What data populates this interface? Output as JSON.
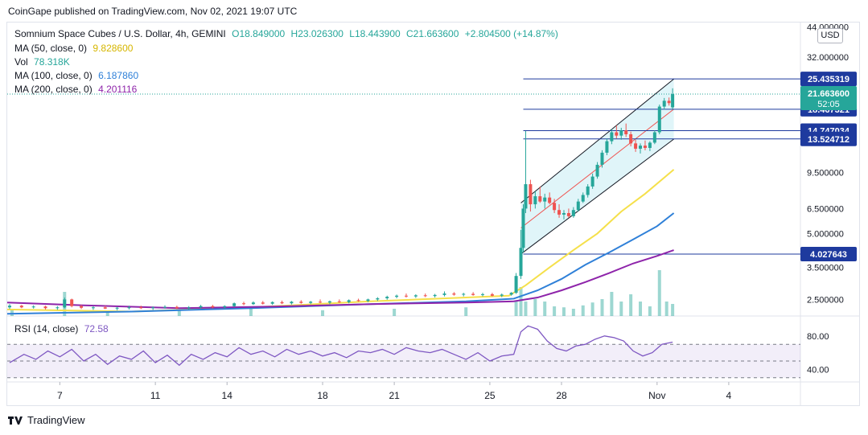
{
  "attribution": "CoinGape published on TradingView.com, Nov 02, 2021 19:07 UTC",
  "footer_brand": "TradingView",
  "currency_button": "USD",
  "legend": {
    "symbol": "Somnium Space Cubes / U.S. Dollar, 4h, GEMINI",
    "open": "O18.849000",
    "high": "H23.026300",
    "low": "L18.443900",
    "close": "C21.663600",
    "change": "+2.804500 (+14.87%)",
    "ma50_label": "MA (50, close, 0)",
    "ma50_value": "9.828600",
    "vol_label": "Vol",
    "vol_value": "78.318K",
    "ma100_label": "MA (100, close, 0)",
    "ma100_value": "6.187860",
    "ma200_label": "MA (200, close, 0)",
    "ma200_value": "4.201116",
    "rsi_label": "RSI (14, close)",
    "rsi_value": "72.58"
  },
  "colors": {
    "up": "#26a69a",
    "down": "#ef5350",
    "ma50": "#f5e04b",
    "ma100": "#2f80d8",
    "ma200": "#8e24aa",
    "rsi": "#7e57c2",
    "hline": "#1e3a9e",
    "channel": "#d8f3f7",
    "price_badge": "#26a69a"
  },
  "chart_data": [
    {
      "type": "line",
      "subtype": "candlestick",
      "title": "Somnium Space Cubes / U.S. Dollar, 4h, GEMINI",
      "x_ticks": [
        "7",
        "11",
        "14",
        "18",
        "21",
        "25",
        "28",
        "Nov",
        "4"
      ],
      "x_tick_positions": [
        7,
        11,
        14,
        18,
        21,
        25,
        28,
        32,
        35
      ],
      "y_scale": "log",
      "y_ticks": [
        2.5,
        3.5,
        5.0,
        6.5,
        9.5,
        32.0,
        44.0
      ],
      "y_tick_labels": [
        "2.500000",
        "3.500000",
        "5.000000",
        "6.500000",
        "9.500000",
        "32.000000",
        "44.000000"
      ],
      "ylim": [
        2.1,
        46
      ],
      "xlim": [
        4.8,
        38.0
      ],
      "x_unit": "day",
      "price_levels": [
        {
          "value": 25.435319,
          "label": "25.435319"
        },
        {
          "value": 18.467321,
          "label": "18.467321"
        },
        {
          "value": 14.747034,
          "label": "14.747034"
        },
        {
          "value": 13.524712,
          "label": "13.524712"
        },
        {
          "value": 4.027643,
          "label": "4.027643"
        }
      ],
      "last_price": {
        "value": 21.6636,
        "label": "21.663600",
        "countdown": "52:05"
      },
      "channel": {
        "upper": [
          [
            26.3,
            6.9
          ],
          [
            32.7,
            25.4
          ]
        ],
        "lower": [
          [
            26.3,
            4.03
          ],
          [
            32.7,
            13.5
          ]
        ],
        "mid": [
          [
            26.3,
            5.3
          ],
          [
            32.7,
            18.5
          ]
        ]
      },
      "moving_averages": [
        {
          "name": "MA (50, close, 0)",
          "points": [
            [
              4.8,
              2.25
            ],
            [
              10,
              2.2
            ],
            [
              15,
              2.3
            ],
            [
              20,
              2.45
            ],
            [
              24,
              2.55
            ],
            [
              25.8,
              2.6
            ],
            [
              26.5,
              2.9
            ],
            [
              27.5,
              3.5
            ],
            [
              28.5,
              4.2
            ],
            [
              29.5,
              5.0
            ],
            [
              30.5,
              6.3
            ],
            [
              31.5,
              7.6
            ],
            [
              32.7,
              9.8
            ]
          ]
        },
        {
          "name": "MA (100, close, 0)",
          "points": [
            [
              4.8,
              2.15
            ],
            [
              10,
              2.2
            ],
            [
              15,
              2.28
            ],
            [
              20,
              2.38
            ],
            [
              24,
              2.45
            ],
            [
              26,
              2.52
            ],
            [
              27,
              2.75
            ],
            [
              28,
              3.1
            ],
            [
              29,
              3.6
            ],
            [
              30,
              4.1
            ],
            [
              31,
              4.7
            ],
            [
              32,
              5.4
            ],
            [
              32.7,
              6.2
            ]
          ]
        },
        {
          "name": "MA (200, close, 0)",
          "points": [
            [
              4.8,
              2.42
            ],
            [
              8,
              2.35
            ],
            [
              12,
              2.28
            ],
            [
              16,
              2.32
            ],
            [
              20,
              2.38
            ],
            [
              24,
              2.42
            ],
            [
              26,
              2.45
            ],
            [
              27,
              2.55
            ],
            [
              28,
              2.75
            ],
            [
              29,
              3.0
            ],
            [
              30,
              3.3
            ],
            [
              31,
              3.65
            ],
            [
              32,
              3.95
            ],
            [
              32.7,
              4.2
            ]
          ]
        }
      ],
      "candles": [
        [
          4.9,
          2.3,
          2.38,
          2.26,
          2.34
        ],
        [
          5.4,
          2.34,
          2.36,
          2.28,
          2.3
        ],
        [
          5.9,
          2.3,
          2.35,
          2.27,
          2.32
        ],
        [
          6.4,
          2.32,
          2.34,
          2.25,
          2.28
        ],
        [
          6.9,
          2.28,
          2.33,
          2.24,
          2.3
        ],
        [
          7.2,
          2.3,
          2.55,
          2.28,
          2.5
        ],
        [
          7.5,
          2.5,
          2.52,
          2.3,
          2.33
        ],
        [
          7.9,
          2.33,
          2.36,
          2.26,
          2.29
        ],
        [
          8.4,
          2.29,
          2.33,
          2.24,
          2.3
        ],
        [
          8.9,
          2.3,
          2.34,
          2.26,
          2.27
        ],
        [
          9.4,
          2.27,
          2.31,
          2.23,
          2.29
        ],
        [
          9.9,
          2.29,
          2.34,
          2.25,
          2.3
        ],
        [
          10.4,
          2.3,
          2.34,
          2.26,
          2.28
        ],
        [
          10.9,
          2.28,
          2.32,
          2.24,
          2.3
        ],
        [
          11.4,
          2.3,
          2.35,
          2.27,
          2.31
        ],
        [
          11.9,
          2.31,
          2.34,
          2.26,
          2.28
        ],
        [
          12.4,
          2.28,
          2.33,
          2.25,
          2.3
        ],
        [
          12.9,
          2.3,
          2.36,
          2.27,
          2.33
        ],
        [
          13.4,
          2.33,
          2.36,
          2.28,
          2.3
        ],
        [
          13.9,
          2.3,
          2.35,
          2.27,
          2.33
        ],
        [
          14.3,
          2.33,
          2.42,
          2.31,
          2.4
        ],
        [
          14.7,
          2.4,
          2.44,
          2.35,
          2.38
        ],
        [
          15.1,
          2.38,
          2.45,
          2.36,
          2.42
        ],
        [
          15.5,
          2.42,
          2.46,
          2.37,
          2.39
        ],
        [
          15.9,
          2.39,
          2.45,
          2.36,
          2.43
        ],
        [
          16.3,
          2.43,
          2.47,
          2.38,
          2.4
        ],
        [
          16.7,
          2.4,
          2.46,
          2.37,
          2.44
        ],
        [
          17.1,
          2.44,
          2.48,
          2.39,
          2.41
        ],
        [
          17.5,
          2.41,
          2.46,
          2.38,
          2.44
        ],
        [
          17.9,
          2.44,
          2.5,
          2.4,
          2.42
        ],
        [
          18.3,
          2.42,
          2.47,
          2.38,
          2.45
        ],
        [
          18.7,
          2.45,
          2.5,
          2.41,
          2.43
        ],
        [
          19.1,
          2.43,
          2.5,
          2.4,
          2.48
        ],
        [
          19.5,
          2.48,
          2.52,
          2.44,
          2.46
        ],
        [
          19.9,
          2.46,
          2.52,
          2.43,
          2.5
        ],
        [
          20.3,
          2.5,
          2.56,
          2.46,
          2.53
        ],
        [
          20.7,
          2.53,
          2.6,
          2.49,
          2.57
        ],
        [
          21.1,
          2.57,
          2.63,
          2.53,
          2.6
        ],
        [
          21.5,
          2.6,
          2.66,
          2.55,
          2.58
        ],
        [
          21.9,
          2.58,
          2.64,
          2.54,
          2.61
        ],
        [
          22.3,
          2.61,
          2.66,
          2.56,
          2.59
        ],
        [
          22.7,
          2.59,
          2.65,
          2.55,
          2.62
        ],
        [
          23.1,
          2.62,
          2.72,
          2.58,
          2.66
        ],
        [
          23.5,
          2.66,
          2.7,
          2.6,
          2.63
        ],
        [
          23.9,
          2.63,
          2.68,
          2.58,
          2.65
        ],
        [
          24.3,
          2.65,
          2.7,
          2.6,
          2.62
        ],
        [
          24.7,
          2.62,
          2.68,
          2.58,
          2.64
        ],
        [
          25.1,
          2.64,
          2.68,
          2.58,
          2.6
        ],
        [
          25.5,
          2.6,
          2.66,
          2.56,
          2.63
        ],
        [
          25.9,
          2.63,
          2.7,
          2.6,
          2.68
        ],
        [
          26.1,
          2.68,
          3.3,
          2.65,
          3.2
        ],
        [
          26.3,
          3.2,
          5.2,
          3.1,
          4.3
        ],
        [
          26.4,
          4.3,
          6.8,
          4.1,
          6.5
        ],
        [
          26.5,
          6.5,
          14.7,
          6.2,
          8.4
        ],
        [
          26.7,
          8.4,
          8.8,
          6.3,
          6.8
        ],
        [
          26.9,
          6.8,
          7.8,
          6.5,
          7.4
        ],
        [
          27.1,
          7.4,
          8.2,
          6.9,
          7.0
        ],
        [
          27.3,
          7.0,
          7.6,
          6.5,
          7.3
        ],
        [
          27.5,
          7.3,
          7.7,
          6.8,
          6.9
        ],
        [
          27.7,
          6.9,
          7.2,
          6.2,
          6.4
        ],
        [
          27.9,
          6.4,
          6.8,
          5.9,
          6.1
        ],
        [
          28.1,
          6.1,
          6.4,
          5.8,
          6.2
        ],
        [
          28.3,
          6.2,
          6.5,
          5.9,
          6.0
        ],
        [
          28.5,
          6.0,
          6.6,
          5.9,
          6.4
        ],
        [
          28.7,
          6.4,
          7.2,
          6.3,
          7.0
        ],
        [
          28.9,
          7.0,
          7.7,
          6.9,
          7.5
        ],
        [
          29.1,
          7.5,
          8.4,
          7.3,
          8.2
        ],
        [
          29.3,
          8.2,
          9.4,
          8.0,
          9.1
        ],
        [
          29.5,
          9.1,
          10.6,
          8.9,
          10.3
        ],
        [
          29.7,
          10.3,
          12.0,
          10.0,
          11.7
        ],
        [
          29.9,
          11.7,
          13.6,
          11.4,
          13.2
        ],
        [
          30.1,
          13.2,
          15.0,
          12.8,
          14.5
        ],
        [
          30.3,
          14.5,
          15.6,
          13.6,
          14.0
        ],
        [
          30.5,
          14.0,
          15.2,
          13.4,
          14.8
        ],
        [
          30.7,
          14.8,
          15.9,
          13.8,
          14.2
        ],
        [
          30.9,
          14.2,
          14.6,
          12.5,
          12.9
        ],
        [
          31.1,
          12.9,
          13.4,
          11.8,
          12.2
        ],
        [
          31.3,
          12.2,
          12.9,
          11.6,
          12.6
        ],
        [
          31.5,
          12.6,
          13.3,
          12.0,
          12.3
        ],
        [
          31.7,
          12.3,
          13.2,
          11.9,
          13.0
        ],
        [
          31.9,
          13.0,
          14.8,
          12.8,
          14.5
        ],
        [
          32.1,
          14.5,
          19.4,
          14.2,
          19.0
        ],
        [
          32.3,
          19.0,
          20.8,
          18.4,
          20.2
        ],
        [
          32.5,
          20.2,
          20.9,
          19.2,
          19.7
        ],
        [
          32.65,
          18.85,
          23.03,
          18.44,
          21.66
        ]
      ],
      "volume": [
        [
          5,
          0.15
        ],
        [
          7.2,
          0.5
        ],
        [
          9,
          0.1
        ],
        [
          12,
          0.12
        ],
        [
          15,
          0.15
        ],
        [
          18,
          0.12
        ],
        [
          21,
          0.15
        ],
        [
          24,
          0.18
        ],
        [
          26.1,
          0.3
        ],
        [
          26.3,
          0.6
        ],
        [
          26.5,
          0.3
        ],
        [
          26.9,
          0.35
        ],
        [
          27.3,
          0.3
        ],
        [
          27.7,
          0.2
        ],
        [
          28.1,
          0.18
        ],
        [
          28.5,
          0.15
        ],
        [
          28.9,
          0.22
        ],
        [
          29.3,
          0.28
        ],
        [
          29.7,
          0.35
        ],
        [
          30.1,
          0.5
        ],
        [
          30.5,
          0.3
        ],
        [
          30.9,
          0.45
        ],
        [
          31.3,
          0.3
        ],
        [
          31.7,
          0.2
        ],
        [
          32.1,
          0.95
        ],
        [
          32.4,
          0.3
        ],
        [
          32.65,
          0.25
        ]
      ],
      "rsi": {
        "name": "RSI (14, close)",
        "levels": [
          70,
          50,
          30
        ],
        "y_ticks": [
          80,
          40
        ],
        "points": [
          [
            4.9,
            48
          ],
          [
            5.5,
            58
          ],
          [
            6,
            52
          ],
          [
            6.5,
            62
          ],
          [
            7,
            55
          ],
          [
            7.5,
            64
          ],
          [
            8,
            50
          ],
          [
            8.5,
            58
          ],
          [
            9,
            46
          ],
          [
            9.5,
            56
          ],
          [
            10,
            52
          ],
          [
            10.5,
            62
          ],
          [
            11,
            48
          ],
          [
            11.5,
            57
          ],
          [
            12,
            45
          ],
          [
            12.5,
            58
          ],
          [
            13,
            52
          ],
          [
            13.5,
            60
          ],
          [
            14,
            55
          ],
          [
            14.5,
            66
          ],
          [
            15,
            58
          ],
          [
            15.5,
            62
          ],
          [
            16,
            55
          ],
          [
            16.5,
            64
          ],
          [
            17,
            58
          ],
          [
            17.5,
            62
          ],
          [
            18,
            56
          ],
          [
            18.5,
            60
          ],
          [
            19,
            54
          ],
          [
            19.5,
            62
          ],
          [
            20,
            60
          ],
          [
            20.5,
            64
          ],
          [
            21,
            58
          ],
          [
            21.5,
            66
          ],
          [
            22,
            62
          ],
          [
            22.5,
            60
          ],
          [
            23,
            64
          ],
          [
            23.5,
            58
          ],
          [
            24,
            52
          ],
          [
            24.5,
            60
          ],
          [
            25,
            50
          ],
          [
            25.5,
            56
          ],
          [
            26,
            58
          ],
          [
            26.3,
            85
          ],
          [
            26.6,
            92
          ],
          [
            27,
            88
          ],
          [
            27.4,
            74
          ],
          [
            27.8,
            65
          ],
          [
            28.2,
            62
          ],
          [
            28.6,
            68
          ],
          [
            29,
            70
          ],
          [
            29.4,
            76
          ],
          [
            29.8,
            80
          ],
          [
            30.2,
            78
          ],
          [
            30.6,
            74
          ],
          [
            31,
            62
          ],
          [
            31.4,
            56
          ],
          [
            31.8,
            60
          ],
          [
            32.2,
            70
          ],
          [
            32.65,
            72.58
          ]
        ]
      }
    }
  ]
}
